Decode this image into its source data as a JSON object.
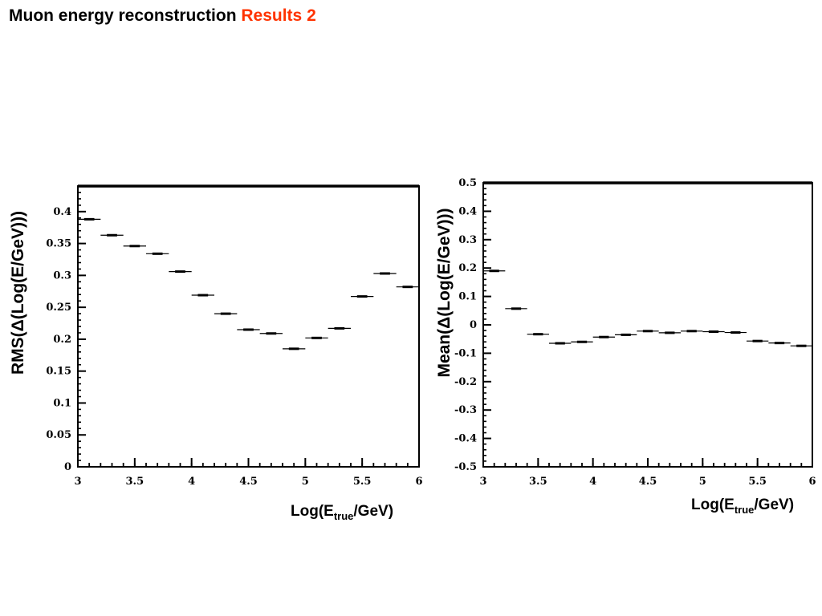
{
  "slide": {
    "title_main": "Muon energy reconstruction",
    "title_accent": "Results 2",
    "accent_color": "#ff3300"
  },
  "chart_data": [
    {
      "type": "step",
      "title": "",
      "xlabel": "Log(E_true/GeV)",
      "xlabel_parts": {
        "pre": "Log(E",
        "sub": "true",
        "post": "/GeV)"
      },
      "ylabel": "RMS(Δ(Log(E/GeV)))",
      "xlim": [
        3,
        6
      ],
      "ylim": [
        0,
        0.44
      ],
      "xticks": [
        "3",
        "3.5",
        "4",
        "4.5",
        "5",
        "5.5",
        "6"
      ],
      "yticks": [
        "0",
        "0.05",
        "0.1",
        "0.15",
        "0.2",
        "0.25",
        "0.3",
        "0.35",
        "0.4"
      ],
      "bin_width": 0.2,
      "x": [
        3.1,
        3.3,
        3.5,
        3.7,
        3.9,
        4.1,
        4.3,
        4.5,
        4.7,
        4.9,
        5.1,
        5.3,
        5.5,
        5.7,
        5.9
      ],
      "values": [
        0.388,
        0.363,
        0.346,
        0.334,
        0.306,
        0.269,
        0.24,
        0.215,
        0.209,
        0.185,
        0.202,
        0.217,
        0.267,
        0.303,
        0.282
      ],
      "grid": false
    },
    {
      "type": "step",
      "title": "",
      "xlabel": "Log(E_true/GeV)",
      "xlabel_parts": {
        "pre": "Log(E",
        "sub": "true",
        "post": "/GeV)"
      },
      "ylabel": "Mean(Δ(Log(E/GeV)))",
      "xlim": [
        3,
        6
      ],
      "ylim": [
        -0.5,
        0.5
      ],
      "xticks": [
        "3",
        "3.5",
        "4",
        "4.5",
        "5",
        "5.5",
        "6"
      ],
      "yticks": [
        "-0.5",
        "-0.4",
        "-0.3",
        "-0.2",
        "-0.1",
        "0",
        "0.1",
        "0.2",
        "0.3",
        "0.4",
        "0.5"
      ],
      "bin_width": 0.2,
      "x": [
        3.1,
        3.3,
        3.5,
        3.7,
        3.9,
        4.1,
        4.3,
        4.5,
        4.7,
        4.9,
        5.1,
        5.3,
        5.5,
        5.7,
        5.9
      ],
      "values": [
        0.19,
        0.057,
        -0.033,
        -0.065,
        -0.06,
        -0.043,
        -0.035,
        -0.022,
        -0.028,
        -0.022,
        -0.024,
        -0.027,
        -0.057,
        -0.064,
        -0.074
      ],
      "grid": false
    }
  ]
}
